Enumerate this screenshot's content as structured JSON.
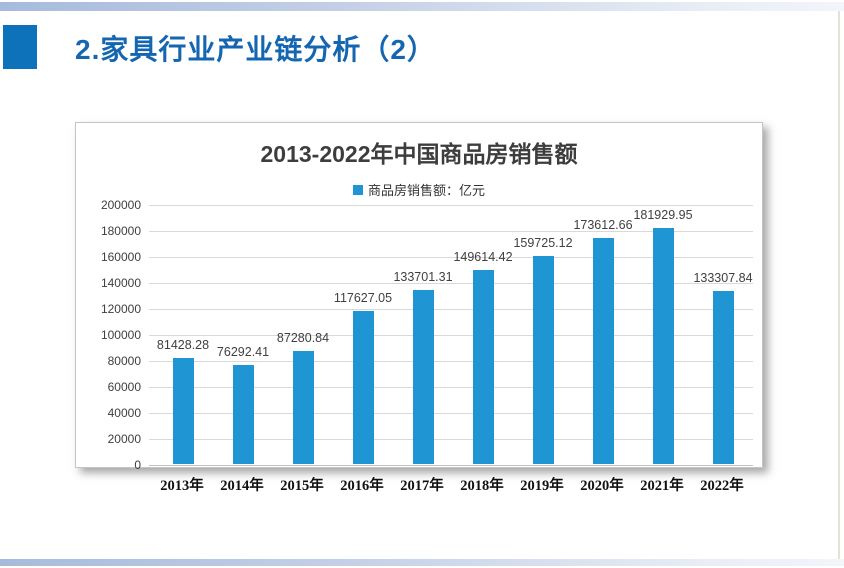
{
  "slide": {
    "title": "2.家具行业产业链分析（2）"
  },
  "colors": {
    "title_blue": "#1566b1",
    "accent_square_blue": "#0d72b9",
    "bar_blue": "#2095d3",
    "legend_marker_blue": "#2095d3"
  },
  "chart_data": {
    "type": "bar",
    "title": "2013-2022年中国商品房销售额",
    "legend_entries": [
      "商品房销售额：亿元"
    ],
    "legend_position": "top",
    "grid": true,
    "categories": [
      "2013年",
      "2014年",
      "2015年",
      "2016年",
      "2017年",
      "2018年",
      "2019年",
      "2020年",
      "2021年",
      "2022年"
    ],
    "series": [
      {
        "name": "商品房销售额：亿元",
        "values": [
          81428.28,
          76292.41,
          87280.84,
          117627.05,
          133701.31,
          149614.42,
          159725.12,
          173612.66,
          181929.95,
          133307.84
        ]
      }
    ],
    "value_labels": [
      "81428.28",
      "76292.41",
      "87280.84",
      "117627.05",
      "133701.31",
      "149614.42",
      "159725.12",
      "173612.66",
      "181929.95",
      "133307.84"
    ],
    "xlabel": "",
    "ylabel": "",
    "ylim": [
      0,
      200000
    ],
    "ytick_step": 20000,
    "yticks": [
      "0",
      "20000",
      "40000",
      "60000",
      "80000",
      "100000",
      "120000",
      "140000",
      "160000",
      "180000",
      "200000"
    ]
  }
}
